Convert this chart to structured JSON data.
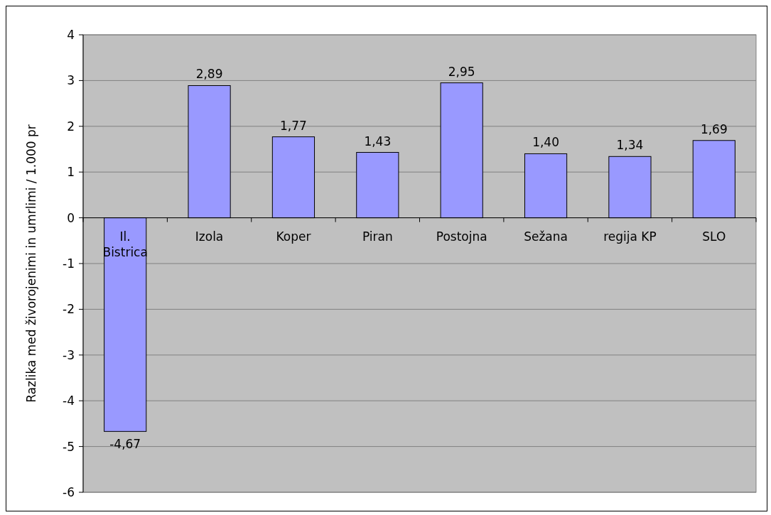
{
  "chart_data": {
    "type": "bar",
    "ylabel": "Razlika med živorojenimi in umrlimi / 1.000 pr",
    "categories": [
      "Il. Bistrica",
      "Izola",
      "Koper",
      "Piran",
      "Postojna",
      "Sežana",
      "regija KP",
      "SLO"
    ],
    "values": [
      -4.67,
      2.89,
      1.77,
      1.43,
      2.95,
      1.4,
      1.34,
      1.69
    ],
    "value_labels": [
      "-4,67",
      "2,89",
      "1,77",
      "1,43",
      "2,95",
      "1,40",
      "1,34",
      "1,69"
    ],
    "color": "#9999ff",
    "ylim": [
      -6,
      4
    ],
    "yticks": [
      -6,
      -5,
      -4,
      -3,
      -2,
      -1,
      0,
      1,
      2,
      3,
      4
    ],
    "grid": "y"
  }
}
